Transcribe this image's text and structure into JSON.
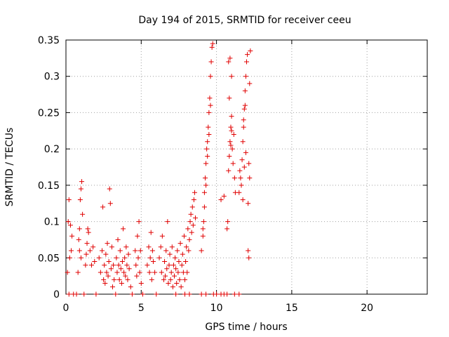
{
  "chart_data": {
    "type": "scatter",
    "title": "Day 194 of 2015, SRMTID for receiver ceeu",
    "xlabel": "GPS time / hours",
    "ylabel": "SRMTID / TECUs",
    "xlim": [
      0,
      24
    ],
    "ylim": [
      0,
      0.35
    ],
    "x_ticks": [
      0,
      5,
      10,
      15,
      20
    ],
    "x_tick_labels": [
      "0",
      "5",
      "10",
      "15",
      "20"
    ],
    "y_ticks": [
      0,
      0.05,
      0.1,
      0.15,
      0.2,
      0.25,
      0.3,
      0.35
    ],
    "y_tick_labels": [
      "0",
      "0.05",
      "0.1",
      "0.15",
      "0.2",
      "0.25",
      "0.3",
      "0.35"
    ],
    "grid": true,
    "marker": "+",
    "color": "#e00000",
    "series": [
      {
        "name": "SRMTID",
        "points": [
          [
            0.1,
            0.03
          ],
          [
            0.15,
            0.1
          ],
          [
            0.2,
            0.13
          ],
          [
            0.25,
            0.05
          ],
          [
            0.3,
            0.095
          ],
          [
            0.35,
            0.06
          ],
          [
            0.4,
            0.08
          ],
          [
            0.5,
            0.0
          ],
          [
            0.2,
            0.0
          ],
          [
            0.7,
            0.0
          ],
          [
            0.8,
            0.03
          ],
          [
            0.85,
            0.075
          ],
          [
            0.9,
            0.09
          ],
          [
            0.95,
            0.13
          ],
          [
            1.0,
            0.145
          ],
          [
            1.05,
            0.155
          ],
          [
            1.1,
            0.11
          ],
          [
            1.0,
            0.05
          ],
          [
            0.9,
            0.06
          ],
          [
            1.2,
            0.0
          ],
          [
            1.3,
            0.04
          ],
          [
            1.35,
            0.055
          ],
          [
            1.4,
            0.07
          ],
          [
            1.45,
            0.09
          ],
          [
            1.5,
            0.085
          ],
          [
            1.6,
            0.06
          ],
          [
            1.7,
            0.04
          ],
          [
            1.8,
            0.065
          ],
          [
            1.9,
            0.045
          ],
          [
            2.0,
            0.0
          ],
          [
            2.2,
            0.05
          ],
          [
            2.3,
            0.03
          ],
          [
            2.4,
            0.06
          ],
          [
            2.45,
            0.12
          ],
          [
            2.5,
            0.02
          ],
          [
            2.55,
            0.04
          ],
          [
            2.6,
            0.015
          ],
          [
            2.65,
            0.055
          ],
          [
            2.7,
            0.03
          ],
          [
            2.75,
            0.07
          ],
          [
            2.8,
            0.025
          ],
          [
            2.85,
            0.045
          ],
          [
            2.9,
            0.145
          ],
          [
            2.95,
            0.125
          ],
          [
            3.0,
            0.035
          ],
          [
            3.05,
            0.065
          ],
          [
            3.1,
            0.01
          ],
          [
            3.15,
            0.04
          ],
          [
            3.2,
            0.02
          ],
          [
            3.3,
            0.0
          ],
          [
            3.35,
            0.05
          ],
          [
            3.4,
            0.03
          ],
          [
            3.45,
            0.075
          ],
          [
            3.5,
            0.04
          ],
          [
            3.55,
            0.02
          ],
          [
            3.6,
            0.06
          ],
          [
            3.65,
            0.035
          ],
          [
            3.7,
            0.015
          ],
          [
            3.75,
            0.045
          ],
          [
            3.8,
            0.09
          ],
          [
            3.85,
            0.03
          ],
          [
            3.9,
            0.05
          ],
          [
            3.95,
            0.025
          ],
          [
            4.0,
            0.065
          ],
          [
            4.05,
            0.04
          ],
          [
            4.1,
            0.02
          ],
          [
            4.15,
            0.055
          ],
          [
            4.2,
            0.035
          ],
          [
            4.3,
            0.01
          ],
          [
            4.4,
            0.0
          ],
          [
            4.6,
            0.06
          ],
          [
            4.65,
            0.04
          ],
          [
            4.7,
            0.025
          ],
          [
            4.75,
            0.08
          ],
          [
            4.8,
            0.05
          ],
          [
            4.85,
            0.1
          ],
          [
            4.9,
            0.03
          ],
          [
            4.95,
            0.06
          ],
          [
            5.0,
            0.015
          ],
          [
            5.1,
            0.0
          ],
          [
            5.4,
            0.04
          ],
          [
            5.5,
            0.065
          ],
          [
            5.55,
            0.03
          ],
          [
            5.6,
            0.05
          ],
          [
            5.65,
            0.085
          ],
          [
            5.7,
            0.02
          ],
          [
            5.75,
            0.06
          ],
          [
            5.8,
            0.045
          ],
          [
            5.9,
            0.03
          ],
          [
            6.0,
            0.0
          ],
          [
            6.2,
            0.05
          ],
          [
            6.3,
            0.065
          ],
          [
            6.35,
            0.03
          ],
          [
            6.4,
            0.08
          ],
          [
            6.5,
            0.02
          ],
          [
            6.55,
            0.045
          ],
          [
            6.6,
            0.025
          ],
          [
            6.65,
            0.06
          ],
          [
            6.7,
            0.035
          ],
          [
            6.75,
            0.1
          ],
          [
            6.8,
            0.015
          ],
          [
            6.85,
            0.04
          ],
          [
            6.9,
            0.055
          ],
          [
            6.95,
            0.02
          ],
          [
            7.0,
            0.03
          ],
          [
            7.05,
            0.065
          ],
          [
            7.1,
            0.01
          ],
          [
            7.15,
            0.04
          ],
          [
            7.2,
            0.025
          ],
          [
            7.25,
            0.05
          ],
          [
            7.3,
            0.035
          ],
          [
            7.35,
            0.015
          ],
          [
            7.4,
            0.06
          ],
          [
            7.45,
            0.03
          ],
          [
            7.5,
            0.045
          ],
          [
            7.55,
            0.02
          ],
          [
            7.6,
            0.07
          ],
          [
            7.65,
            0.01
          ],
          [
            7.7,
            0.04
          ],
          [
            7.75,
            0.055
          ],
          [
            7.8,
            0.03
          ],
          [
            7.85,
            0.08
          ],
          [
            7.9,
            0.02
          ],
          [
            7.95,
            0.045
          ],
          [
            8.0,
            0.065
          ],
          [
            8.05,
            0.03
          ],
          [
            8.1,
            0.09
          ],
          [
            8.15,
            0.06
          ],
          [
            8.2,
            0.075
          ],
          [
            8.25,
            0.1
          ],
          [
            8.3,
            0.11
          ],
          [
            8.35,
            0.085
          ],
          [
            8.4,
            0.12
          ],
          [
            8.45,
            0.095
          ],
          [
            8.5,
            0.13
          ],
          [
            8.55,
            0.14
          ],
          [
            8.6,
            0.105
          ],
          [
            8.2,
            0.0
          ],
          [
            7.3,
            0.0
          ],
          [
            7.9,
            0.0
          ],
          [
            9.0,
            0.06
          ],
          [
            9.1,
            0.08
          ],
          [
            9.15,
            0.1
          ],
          [
            9.2,
            0.14
          ],
          [
            9.25,
            0.16
          ],
          [
            9.3,
            0.18
          ],
          [
            9.35,
            0.2
          ],
          [
            9.4,
            0.21
          ],
          [
            9.45,
            0.23
          ],
          [
            9.5,
            0.25
          ],
          [
            9.55,
            0.27
          ],
          [
            9.6,
            0.3
          ],
          [
            9.65,
            0.32
          ],
          [
            9.7,
            0.34
          ],
          [
            9.75,
            0.345
          ],
          [
            9.6,
            0.26
          ],
          [
            9.5,
            0.22
          ],
          [
            9.4,
            0.19
          ],
          [
            9.3,
            0.15
          ],
          [
            9.2,
            0.12
          ],
          [
            9.1,
            0.09
          ],
          [
            9.0,
            0.0
          ],
          [
            9.3,
            0.0
          ],
          [
            9.8,
            0.0
          ],
          [
            10.0,
            0.0
          ],
          [
            10.3,
            0.0
          ],
          [
            10.5,
            0.0
          ],
          [
            10.7,
            0.0
          ],
          [
            11.2,
            0.0
          ],
          [
            11.5,
            0.0
          ],
          [
            10.3,
            0.13
          ],
          [
            10.5,
            0.135
          ],
          [
            10.7,
            0.09
          ],
          [
            10.75,
            0.1
          ],
          [
            10.8,
            0.17
          ],
          [
            10.85,
            0.19
          ],
          [
            10.9,
            0.21
          ],
          [
            10.95,
            0.23
          ],
          [
            11.0,
            0.245
          ],
          [
            10.8,
            0.32
          ],
          [
            10.9,
            0.325
          ],
          [
            11.0,
            0.3
          ],
          [
            10.85,
            0.27
          ],
          [
            11.05,
            0.2
          ],
          [
            11.1,
            0.18
          ],
          [
            11.15,
            0.22
          ],
          [
            11.2,
            0.16
          ],
          [
            11.25,
            0.14
          ],
          [
            11.0,
            0.225
          ],
          [
            10.95,
            0.205
          ],
          [
            11.5,
            0.14
          ],
          [
            11.6,
            0.16
          ],
          [
            11.7,
            0.185
          ],
          [
            11.75,
            0.21
          ],
          [
            11.8,
            0.23
          ],
          [
            11.85,
            0.255
          ],
          [
            11.9,
            0.28
          ],
          [
            11.95,
            0.3
          ],
          [
            12.0,
            0.32
          ],
          [
            12.05,
            0.33
          ],
          [
            11.55,
            0.17
          ],
          [
            11.65,
            0.15
          ],
          [
            11.75,
            0.13
          ],
          [
            11.85,
            0.175
          ],
          [
            11.95,
            0.195
          ],
          [
            12.1,
            0.125
          ],
          [
            12.15,
            0.18
          ],
          [
            12.2,
            0.29
          ],
          [
            12.25,
            0.335
          ],
          [
            12.1,
            0.06
          ],
          [
            12.15,
            0.05
          ],
          [
            12.2,
            0.16
          ],
          [
            11.9,
            0.26
          ],
          [
            11.8,
            0.24
          ]
        ]
      }
    ]
  }
}
